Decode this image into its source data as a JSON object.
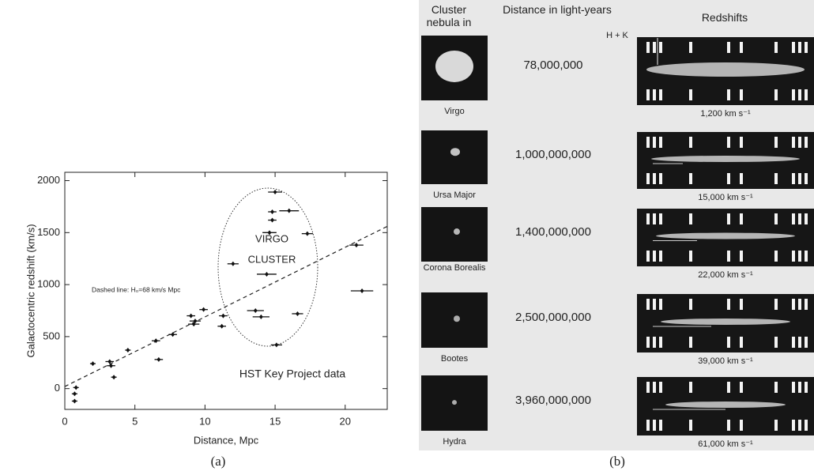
{
  "chart_data": {
    "type": "scatter",
    "xlabel": "Distance, Mpc",
    "ylabel": "Galactocentric redshift (km/s)",
    "annotations": [
      "Dashed line: H₀=68 km/s Mpc",
      "VIRGO",
      "CLUSTER",
      "HST Key Project data"
    ],
    "x": [
      0.7,
      0.7,
      0.8,
      2.0,
      3.2,
      3.3,
      3.5,
      4.5,
      6.7,
      6.5,
      7.7,
      9.0,
      9.2,
      9.3,
      9.9,
      11.2,
      11.3,
      12.0,
      13.6,
      14.0,
      14.4,
      14.6,
      14.8,
      14.8,
      15.0,
      15.1,
      16.0,
      16.6,
      17.3,
      20.8,
      21.2
    ],
    "y": [
      -120,
      -50,
      10,
      240,
      260,
      220,
      110,
      370,
      280,
      460,
      520,
      700,
      620,
      650,
      760,
      600,
      700,
      1200,
      750,
      690,
      1100,
      1500,
      1700,
      1620,
      1890,
      420,
      1710,
      720,
      1490,
      1380,
      940
    ],
    "xerr": [
      0.2,
      0.2,
      0.2,
      0.2,
      0.3,
      0.3,
      0.2,
      0.2,
      0.3,
      0.3,
      0.3,
      0.3,
      0.4,
      0.4,
      0.3,
      0.3,
      0.3,
      0.4,
      0.6,
      0.6,
      0.7,
      0.5,
      0.3,
      0.3,
      0.5,
      0.4,
      0.7,
      0.4,
      0.4,
      0.5,
      0.8
    ],
    "fit_line": {
      "x": [
        0,
        23
      ],
      "y": [
        20,
        1560
      ]
    },
    "color": "#111111",
    "xlim": [
      0,
      23
    ],
    "xticks": [
      0,
      5,
      10,
      15,
      20
    ],
    "ylim": [
      -200,
      2080
    ],
    "yticks": [
      0,
      500,
      1000,
      1500,
      2000
    ],
    "caption": "(a)"
  },
  "panel_b": {
    "headers": [
      "Cluster nebula in",
      "Distance in light-years",
      "Redshifts"
    ],
    "marker": "H + K",
    "rows": [
      {
        "name": "Virgo",
        "distance": "78,000,000",
        "redshift": "1,200 km s⁻¹"
      },
      {
        "name": "Ursa Major",
        "distance": "1,000,000,000",
        "redshift": "15,000 km s⁻¹"
      },
      {
        "name": "Corona Borealis",
        "distance": "1,400,000,000",
        "redshift": "22,000 km s⁻¹"
      },
      {
        "name": "Bootes",
        "distance": "2,500,000,000",
        "redshift": "39,000 km s⁻¹"
      },
      {
        "name": "Hydra",
        "distance": "3,960,000,000",
        "redshift": "61,000 km s⁻¹"
      }
    ],
    "caption": "(b)"
  }
}
